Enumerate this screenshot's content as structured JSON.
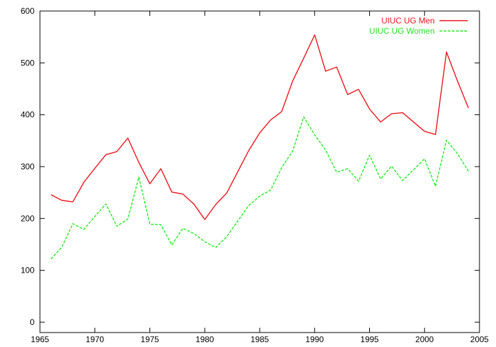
{
  "chart_data": {
    "type": "line",
    "title": "",
    "xlabel": "",
    "ylabel": "",
    "xlim": [
      1965,
      2005
    ],
    "ylim": [
      0,
      600
    ],
    "xticks": [
      1965,
      1970,
      1975,
      1980,
      1985,
      1990,
      1995,
      2000,
      2005
    ],
    "yticks": [
      0,
      100,
      200,
      300,
      400,
      500,
      600
    ],
    "grid": false,
    "legend_position": "top-right",
    "x": [
      1966,
      1967,
      1968,
      1969,
      1970,
      1971,
      1972,
      1973,
      1974,
      1975,
      1976,
      1977,
      1978,
      1979,
      1980,
      1981,
      1982,
      1983,
      1984,
      1985,
      1986,
      1987,
      1988,
      1989,
      1990,
      1991,
      1992,
      1993,
      1994,
      1995,
      1996,
      1997,
      1998,
      1999,
      2000,
      2001,
      2002,
      2003,
      2004
    ],
    "series": [
      {
        "name": "UIUC UG Men",
        "color": "#e8141b",
        "style": "solid",
        "values": [
          246,
          235,
          232,
          270,
          297,
          323,
          329,
          355,
          308,
          267,
          296,
          251,
          247,
          228,
          198,
          227,
          249,
          290,
          331,
          365,
          390,
          406,
          465,
          509,
          554,
          484,
          492,
          439,
          449,
          411,
          386,
          402,
          404,
          386,
          368,
          362,
          521,
          465,
          413
        ]
      },
      {
        "name": "UIUC UG Women",
        "color": "#22e822",
        "style": "dashed",
        "values": [
          122,
          145,
          190,
          179,
          204,
          228,
          185,
          199,
          280,
          189,
          188,
          149,
          181,
          171,
          155,
          144,
          165,
          195,
          225,
          243,
          255,
          298,
          330,
          396,
          361,
          332,
          289,
          296,
          272,
          322,
          276,
          301,
          273,
          294,
          315,
          262,
          351,
          325,
          291
        ]
      }
    ]
  }
}
